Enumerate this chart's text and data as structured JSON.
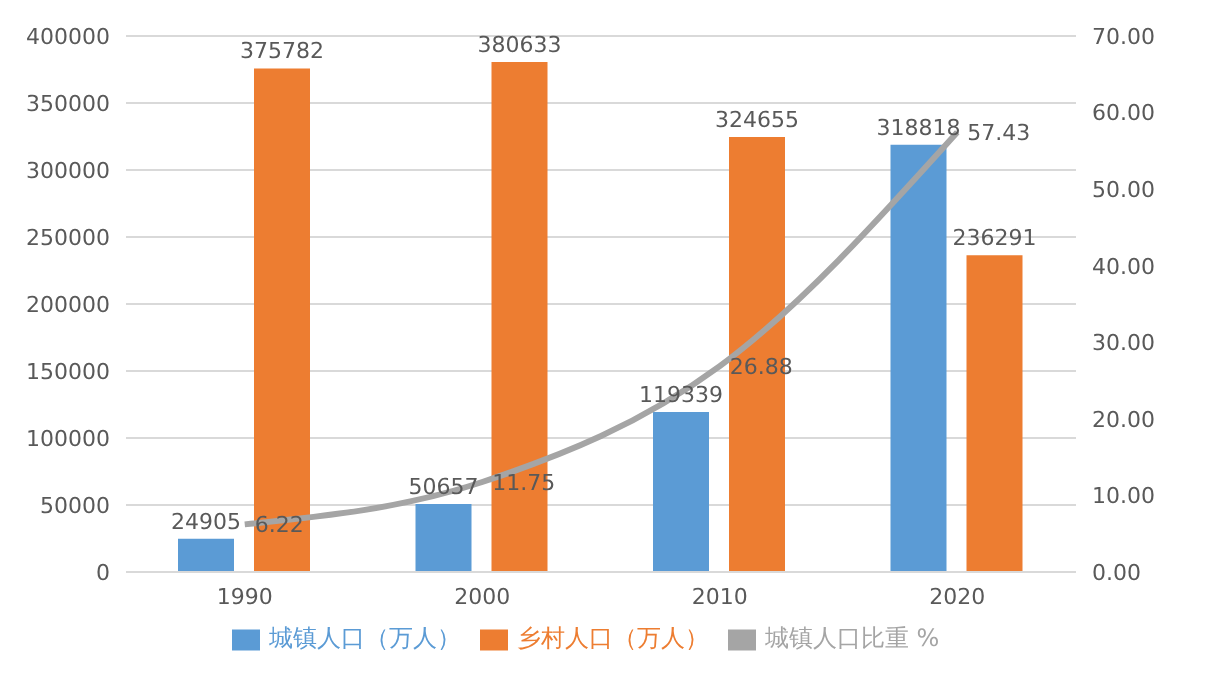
{
  "chart_data": {
    "type": "bar",
    "categories": [
      "1990",
      "2000",
      "2010",
      "2020"
    ],
    "series": [
      {
        "name": "城镇人口（万人）",
        "color": "#5b9bd5",
        "values": [
          24905,
          50657,
          119339,
          318818
        ]
      },
      {
        "name": "乡村人口（万人）",
        "color": "#ed7d31",
        "values": [
          375782,
          380633,
          324655,
          236291
        ]
      },
      {
        "name": "城镇人口比重 %",
        "type": "line",
        "axis": "y2",
        "color": "#a5a5a5",
        "marker": "none",
        "line_style": "solid",
        "values": [
          6.22,
          11.75,
          26.88,
          57.43
        ]
      }
    ],
    "ylim": [
      0,
      400000
    ],
    "yticks": [
      0,
      50000,
      100000,
      150000,
      200000,
      250000,
      300000,
      350000,
      400000
    ],
    "y2lim": [
      0,
      70
    ],
    "y2ticks": [
      {
        "value": 0,
        "label": "0.00"
      },
      {
        "value": 10,
        "label": "10.00"
      },
      {
        "value": 20,
        "label": "20.00"
      },
      {
        "value": 30,
        "label": "30.00"
      },
      {
        "value": 40,
        "label": "40.00"
      },
      {
        "value": 50,
        "label": "50.00"
      },
      {
        "value": 60,
        "label": "60.00"
      },
      {
        "value": 70,
        "label": "70.00"
      }
    ],
    "grid": "y",
    "legend": "bottom",
    "data_labels": true
  }
}
